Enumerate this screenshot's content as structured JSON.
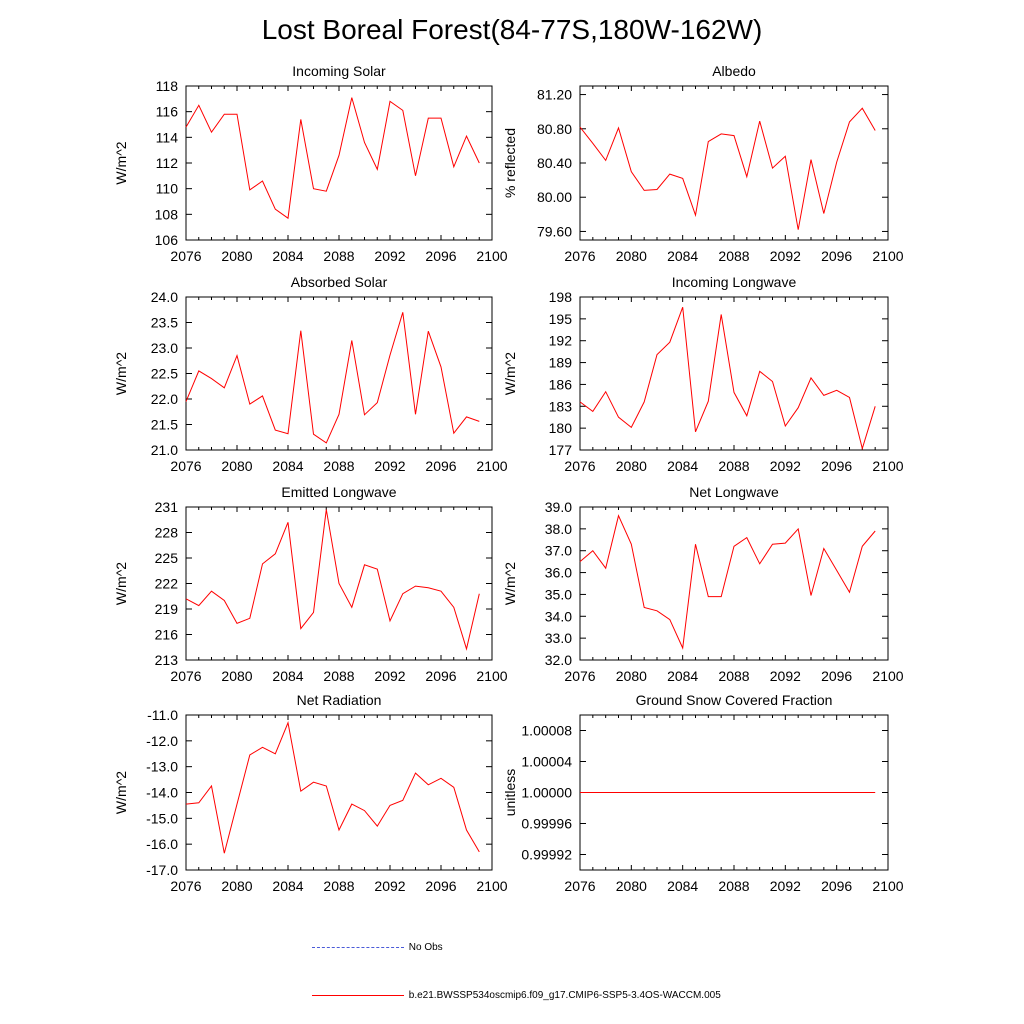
{
  "figure": {
    "title": "Lost Boreal Forest(84-77S,180W-162W)"
  },
  "legend": {
    "obs_label": "No Obs",
    "model_label": "b.e21.BWSSP534oscmip6.f09_g17.CMIP6-SSP5-3.4OS-WACCM.005"
  },
  "colors": {
    "series": "#ff0000",
    "obs": "#4a5ad8",
    "axis": "#000000"
  },
  "chart_data": [
    {
      "type": "line",
      "title": "Incoming Solar",
      "ylabel": "W/m^2",
      "ylim": [
        106,
        118
      ],
      "yticks": [
        106,
        108,
        110,
        112,
        114,
        116,
        118
      ],
      "ytick_labels": [
        "106",
        "108",
        "110",
        "112",
        "114",
        "116",
        "118"
      ],
      "xlim": [
        2076,
        2100
      ],
      "xticks": [
        2076,
        2080,
        2084,
        2088,
        2092,
        2096,
        2100
      ],
      "x": [
        2076,
        2077,
        2078,
        2079,
        2080,
        2081,
        2082,
        2083,
        2084,
        2085,
        2086,
        2087,
        2088,
        2089,
        2090,
        2091,
        2092,
        2093,
        2094,
        2095,
        2096,
        2097,
        2098,
        2099
      ],
      "values": [
        114.8,
        116.5,
        114.4,
        115.8,
        115.8,
        109.9,
        110.6,
        108.4,
        107.7,
        115.4,
        110.0,
        109.8,
        112.6,
        117.1,
        113.6,
        111.5,
        116.8,
        116.1,
        111.0,
        115.5,
        115.5,
        111.7,
        114.1,
        112.0
      ]
    },
    {
      "type": "line",
      "title": "Albedo",
      "ylabel": "% reflected",
      "ylim": [
        79.5,
        81.3
      ],
      "yticks": [
        79.6,
        80.0,
        80.4,
        80.8,
        81.2
      ],
      "ytick_labels": [
        "79.60",
        "80.00",
        "80.40",
        "80.80",
        "81.20"
      ],
      "xlim": [
        2076,
        2100
      ],
      "xticks": [
        2076,
        2080,
        2084,
        2088,
        2092,
        2096,
        2100
      ],
      "x": [
        2076,
        2077,
        2078,
        2079,
        2080,
        2081,
        2082,
        2083,
        2084,
        2085,
        2086,
        2087,
        2088,
        2089,
        2090,
        2091,
        2092,
        2093,
        2094,
        2095,
        2096,
        2097,
        2098,
        2099
      ],
      "values": [
        80.82,
        80.63,
        80.43,
        80.81,
        80.3,
        80.08,
        80.09,
        80.27,
        80.22,
        79.79,
        80.65,
        80.74,
        80.72,
        80.24,
        80.89,
        80.34,
        80.48,
        79.62,
        80.44,
        79.81,
        80.41,
        80.88,
        81.04,
        80.78
      ]
    },
    {
      "type": "line",
      "title": "Absorbed Solar",
      "ylabel": "W/m^2",
      "ylim": [
        21.0,
        24.0
      ],
      "yticks": [
        21.0,
        21.5,
        22.0,
        22.5,
        23.0,
        23.5,
        24.0
      ],
      "ytick_labels": [
        "21.0",
        "21.5",
        "22.0",
        "22.5",
        "23.0",
        "23.5",
        "24.0"
      ],
      "xlim": [
        2076,
        2100
      ],
      "xticks": [
        2076,
        2080,
        2084,
        2088,
        2092,
        2096,
        2100
      ],
      "x": [
        2076,
        2077,
        2078,
        2079,
        2080,
        2081,
        2082,
        2083,
        2084,
        2085,
        2086,
        2087,
        2088,
        2089,
        2090,
        2091,
        2092,
        2093,
        2094,
        2095,
        2096,
        2097,
        2098,
        2099
      ],
      "values": [
        21.95,
        22.55,
        22.4,
        22.22,
        22.85,
        21.9,
        22.06,
        21.39,
        21.32,
        23.34,
        21.31,
        21.14,
        21.7,
        23.15,
        21.69,
        21.93,
        22.86,
        23.7,
        21.7,
        23.33,
        22.63,
        21.33,
        21.65,
        21.56
      ]
    },
    {
      "type": "line",
      "title": "Incoming Longwave",
      "ylabel": "W/m^2",
      "ylim": [
        177,
        198
      ],
      "yticks": [
        177,
        180,
        183,
        186,
        189,
        192,
        195,
        198
      ],
      "ytick_labels": [
        "177",
        "180",
        "183",
        "186",
        "189",
        "192",
        "195",
        "198"
      ],
      "xlim": [
        2076,
        2100
      ],
      "xticks": [
        2076,
        2080,
        2084,
        2088,
        2092,
        2096,
        2100
      ],
      "x": [
        2076,
        2077,
        2078,
        2079,
        2080,
        2081,
        2082,
        2083,
        2084,
        2085,
        2086,
        2087,
        2088,
        2089,
        2090,
        2091,
        2092,
        2093,
        2094,
        2095,
        2096,
        2097,
        2098,
        2099
      ],
      "values": [
        183.6,
        182.3,
        185.0,
        181.5,
        180.1,
        183.6,
        190.1,
        191.8,
        196.6,
        179.5,
        183.7,
        195.6,
        184.9,
        181.7,
        187.8,
        186.4,
        180.3,
        182.8,
        186.9,
        184.5,
        185.2,
        184.2,
        177.2,
        183.0
      ]
    },
    {
      "type": "line",
      "title": "Emitted Longwave",
      "ylabel": "W/m^2",
      "ylim": [
        213,
        231
      ],
      "yticks": [
        213,
        216,
        219,
        222,
        225,
        228,
        231
      ],
      "ytick_labels": [
        "213",
        "216",
        "219",
        "222",
        "225",
        "228",
        "231"
      ],
      "xlim": [
        2076,
        2100
      ],
      "xticks": [
        2076,
        2080,
        2084,
        2088,
        2092,
        2096,
        2100
      ],
      "x": [
        2076,
        2077,
        2078,
        2079,
        2080,
        2081,
        2082,
        2083,
        2084,
        2085,
        2086,
        2087,
        2088,
        2089,
        2090,
        2091,
        2092,
        2093,
        2094,
        2095,
        2096,
        2097,
        2098,
        2099
      ],
      "values": [
        220.2,
        219.4,
        221.1,
        220.0,
        217.3,
        217.9,
        224.3,
        225.5,
        229.2,
        216.7,
        218.6,
        230.7,
        222.0,
        219.2,
        224.2,
        223.7,
        217.6,
        220.8,
        221.7,
        221.5,
        221.1,
        219.2,
        214.3,
        220.8
      ]
    },
    {
      "type": "line",
      "title": "Net Longwave",
      "ylabel": "W/m^2",
      "ylim": [
        32.0,
        39.0
      ],
      "yticks": [
        32.0,
        33.0,
        34.0,
        35.0,
        36.0,
        37.0,
        38.0,
        39.0
      ],
      "ytick_labels": [
        "32.0",
        "33.0",
        "34.0",
        "35.0",
        "36.0",
        "37.0",
        "38.0",
        "39.0"
      ],
      "xlim": [
        2076,
        2100
      ],
      "xticks": [
        2076,
        2080,
        2084,
        2088,
        2092,
        2096,
        2100
      ],
      "x": [
        2076,
        2077,
        2078,
        2079,
        2080,
        2081,
        2082,
        2083,
        2084,
        2085,
        2086,
        2087,
        2088,
        2089,
        2090,
        2091,
        2092,
        2093,
        2094,
        2095,
        2096,
        2097,
        2098,
        2099
      ],
      "values": [
        36.5,
        37.0,
        36.2,
        38.6,
        37.3,
        34.4,
        34.25,
        33.85,
        32.55,
        37.3,
        34.9,
        34.9,
        37.2,
        37.6,
        36.4,
        37.3,
        37.35,
        38.0,
        34.95,
        37.1,
        36.1,
        35.1,
        37.2,
        37.9
      ]
    },
    {
      "type": "line",
      "title": "Net Radiation",
      "ylabel": "W/m^2",
      "ylim": [
        -17.0,
        -11.0
      ],
      "yticks": [
        -17.0,
        -16.0,
        -15.0,
        -14.0,
        -13.0,
        -12.0,
        -11.0
      ],
      "ytick_labels": [
        "-17.0",
        "-16.0",
        "-15.0",
        "-14.0",
        "-13.0",
        "-12.0",
        "-11.0"
      ],
      "xlim": [
        2076,
        2100
      ],
      "xticks": [
        2076,
        2080,
        2084,
        2088,
        2092,
        2096,
        2100
      ],
      "x": [
        2076,
        2077,
        2078,
        2079,
        2080,
        2081,
        2082,
        2083,
        2084,
        2085,
        2086,
        2087,
        2088,
        2089,
        2090,
        2091,
        2092,
        2093,
        2094,
        2095,
        2096,
        2097,
        2098,
        2099
      ],
      "values": [
        -14.45,
        -14.4,
        -13.75,
        -16.35,
        -14.45,
        -12.55,
        -12.25,
        -12.5,
        -11.3,
        -13.95,
        -13.6,
        -13.75,
        -15.45,
        -14.45,
        -14.7,
        -15.3,
        -14.5,
        -14.3,
        -13.25,
        -13.7,
        -13.45,
        -13.8,
        -15.45,
        -16.3
      ]
    },
    {
      "type": "line",
      "title": "Ground Snow Covered Fraction",
      "ylabel": "unitless",
      "ylim": [
        0.9999,
        1.0001
      ],
      "yticks": [
        0.99992,
        0.99996,
        1.0,
        1.00004,
        1.00008
      ],
      "ytick_labels": [
        "0.99992",
        "0.99996",
        "1.00000",
        "1.00004",
        "1.00008"
      ],
      "xlim": [
        2076,
        2100
      ],
      "xticks": [
        2076,
        2080,
        2084,
        2088,
        2092,
        2096,
        2100
      ],
      "x": [
        2076,
        2077,
        2078,
        2079,
        2080,
        2081,
        2082,
        2083,
        2084,
        2085,
        2086,
        2087,
        2088,
        2089,
        2090,
        2091,
        2092,
        2093,
        2094,
        2095,
        2096,
        2097,
        2098,
        2099
      ],
      "values": [
        1.0,
        1.0,
        1.0,
        1.0,
        1.0,
        1.0,
        1.0,
        1.0,
        1.0,
        1.0,
        1.0,
        1.0,
        1.0,
        1.0,
        1.0,
        1.0,
        1.0,
        1.0,
        1.0,
        1.0,
        1.0,
        1.0,
        1.0,
        1.0
      ]
    }
  ]
}
